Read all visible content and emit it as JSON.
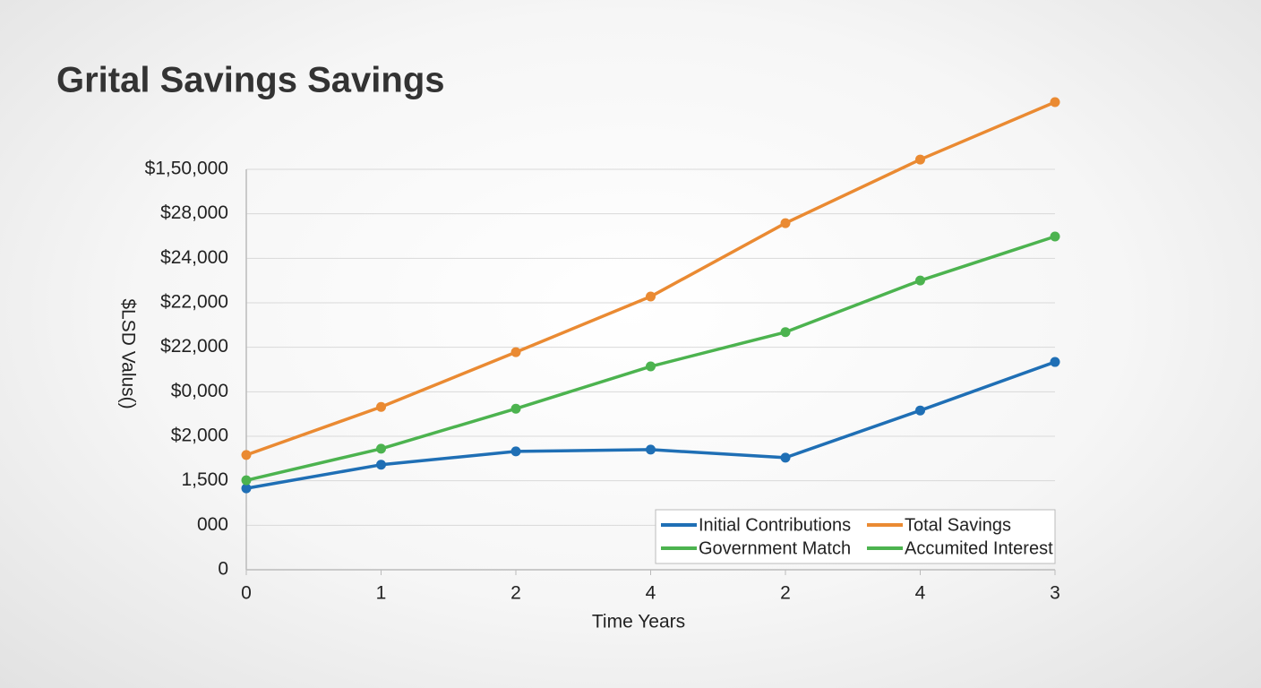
{
  "chart_data": {
    "type": "line",
    "title": "Grital Savings Savings",
    "ylabel": "$LSD Valus()",
    "xlabel": "Time Years",
    "categories": [
      "0",
      "1",
      "2",
      "4",
      "2",
      "4",
      "3"
    ],
    "ylim": [
      0,
      9
    ],
    "yticks": [
      {
        "value": 0,
        "label": "0"
      },
      {
        "value": 1,
        "label": "000"
      },
      {
        "value": 2,
        "label": "1,500"
      },
      {
        "value": 3,
        "label": "$2,000"
      },
      {
        "value": 4,
        "label": "$0,000"
      },
      {
        "value": 5,
        "label": "$22,000"
      },
      {
        "value": 6,
        "label": "$22,000"
      },
      {
        "value": 7,
        "label": "$24,000"
      },
      {
        "value": 8,
        "label": "$28,000"
      },
      {
        "value": 9,
        "label": "$1,50,000"
      }
    ],
    "grid": true,
    "legend": "lower right",
    "series": [
      {
        "name": "Initial Contributions",
        "color": "#1f6fb5",
        "values": [
          1.83,
          2.36,
          2.66,
          2.7,
          2.52,
          3.58,
          4.67
        ]
      },
      {
        "name": "Total Savings",
        "color": "#ea8a32",
        "values": [
          2.58,
          3.66,
          4.89,
          6.14,
          7.79,
          9.22,
          10.51
        ]
      },
      {
        "name": "Government Match",
        "color": "#4cb34f",
        "values": [
          2.01,
          2.72,
          3.62,
          4.57,
          5.34,
          6.5,
          7.49
        ]
      }
    ],
    "extra_legend": [
      {
        "name": "Accumited Interest",
        "color": "#4cb34f"
      }
    ]
  }
}
